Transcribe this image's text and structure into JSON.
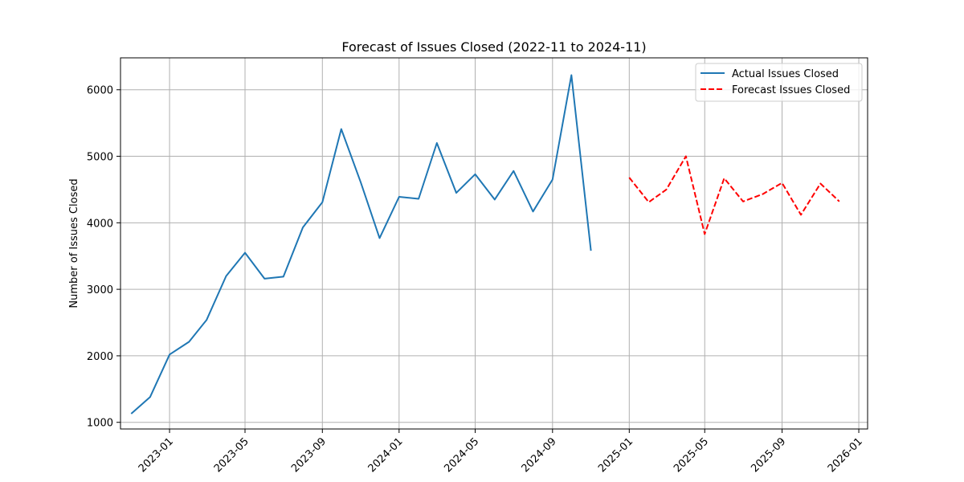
{
  "chart_data": {
    "type": "line",
    "title": "Forecast of Issues Closed (2022-11 to 2024-11)",
    "xlabel": "",
    "ylabel": "Number of Issues Closed",
    "xlim": [
      "2022-10-15",
      "2026-01-15"
    ],
    "ylim": [
      900,
      6480
    ],
    "x_ticks": [
      "2023-01",
      "2023-05",
      "2023-09",
      "2024-01",
      "2024-05",
      "2024-09",
      "2025-01",
      "2025-05",
      "2025-09",
      "2026-01"
    ],
    "y_ticks": [
      1000,
      2000,
      3000,
      4000,
      5000,
      6000
    ],
    "grid": true,
    "legend_position": "upper right",
    "series": [
      {
        "name": "Actual Issues Closed",
        "color": "#1f77b4",
        "style": "solid",
        "x": [
          "2022-11",
          "2022-12",
          "2023-01",
          "2023-02",
          "2023-03",
          "2023-04",
          "2023-05",
          "2023-06",
          "2023-07",
          "2023-08",
          "2023-09",
          "2023-10",
          "2023-11",
          "2023-12",
          "2024-01",
          "2024-02",
          "2024-03",
          "2024-04",
          "2024-05",
          "2024-06",
          "2024-07",
          "2024-08",
          "2024-09",
          "2024-10",
          "2024-11"
        ],
        "values": [
          1130,
          1380,
          2020,
          2210,
          2540,
          3200,
          3550,
          3160,
          3190,
          3930,
          4310,
          5410,
          4610,
          3770,
          4390,
          4360,
          5200,
          4450,
          4730,
          4350,
          4780,
          4170,
          4650,
          6220,
          3580
        ]
      },
      {
        "name": "Forecast Issues Closed",
        "color": "#ff0000",
        "style": "dashed",
        "x": [
          "2025-01",
          "2025-02",
          "2025-03",
          "2025-04",
          "2025-05",
          "2025-06",
          "2025-07",
          "2025-08",
          "2025-09",
          "2025-10",
          "2025-11",
          "2025-12"
        ],
        "values": [
          4680,
          4310,
          4500,
          5000,
          3830,
          4670,
          4320,
          4430,
          4600,
          4120,
          4590,
          4320
        ]
      }
    ]
  }
}
